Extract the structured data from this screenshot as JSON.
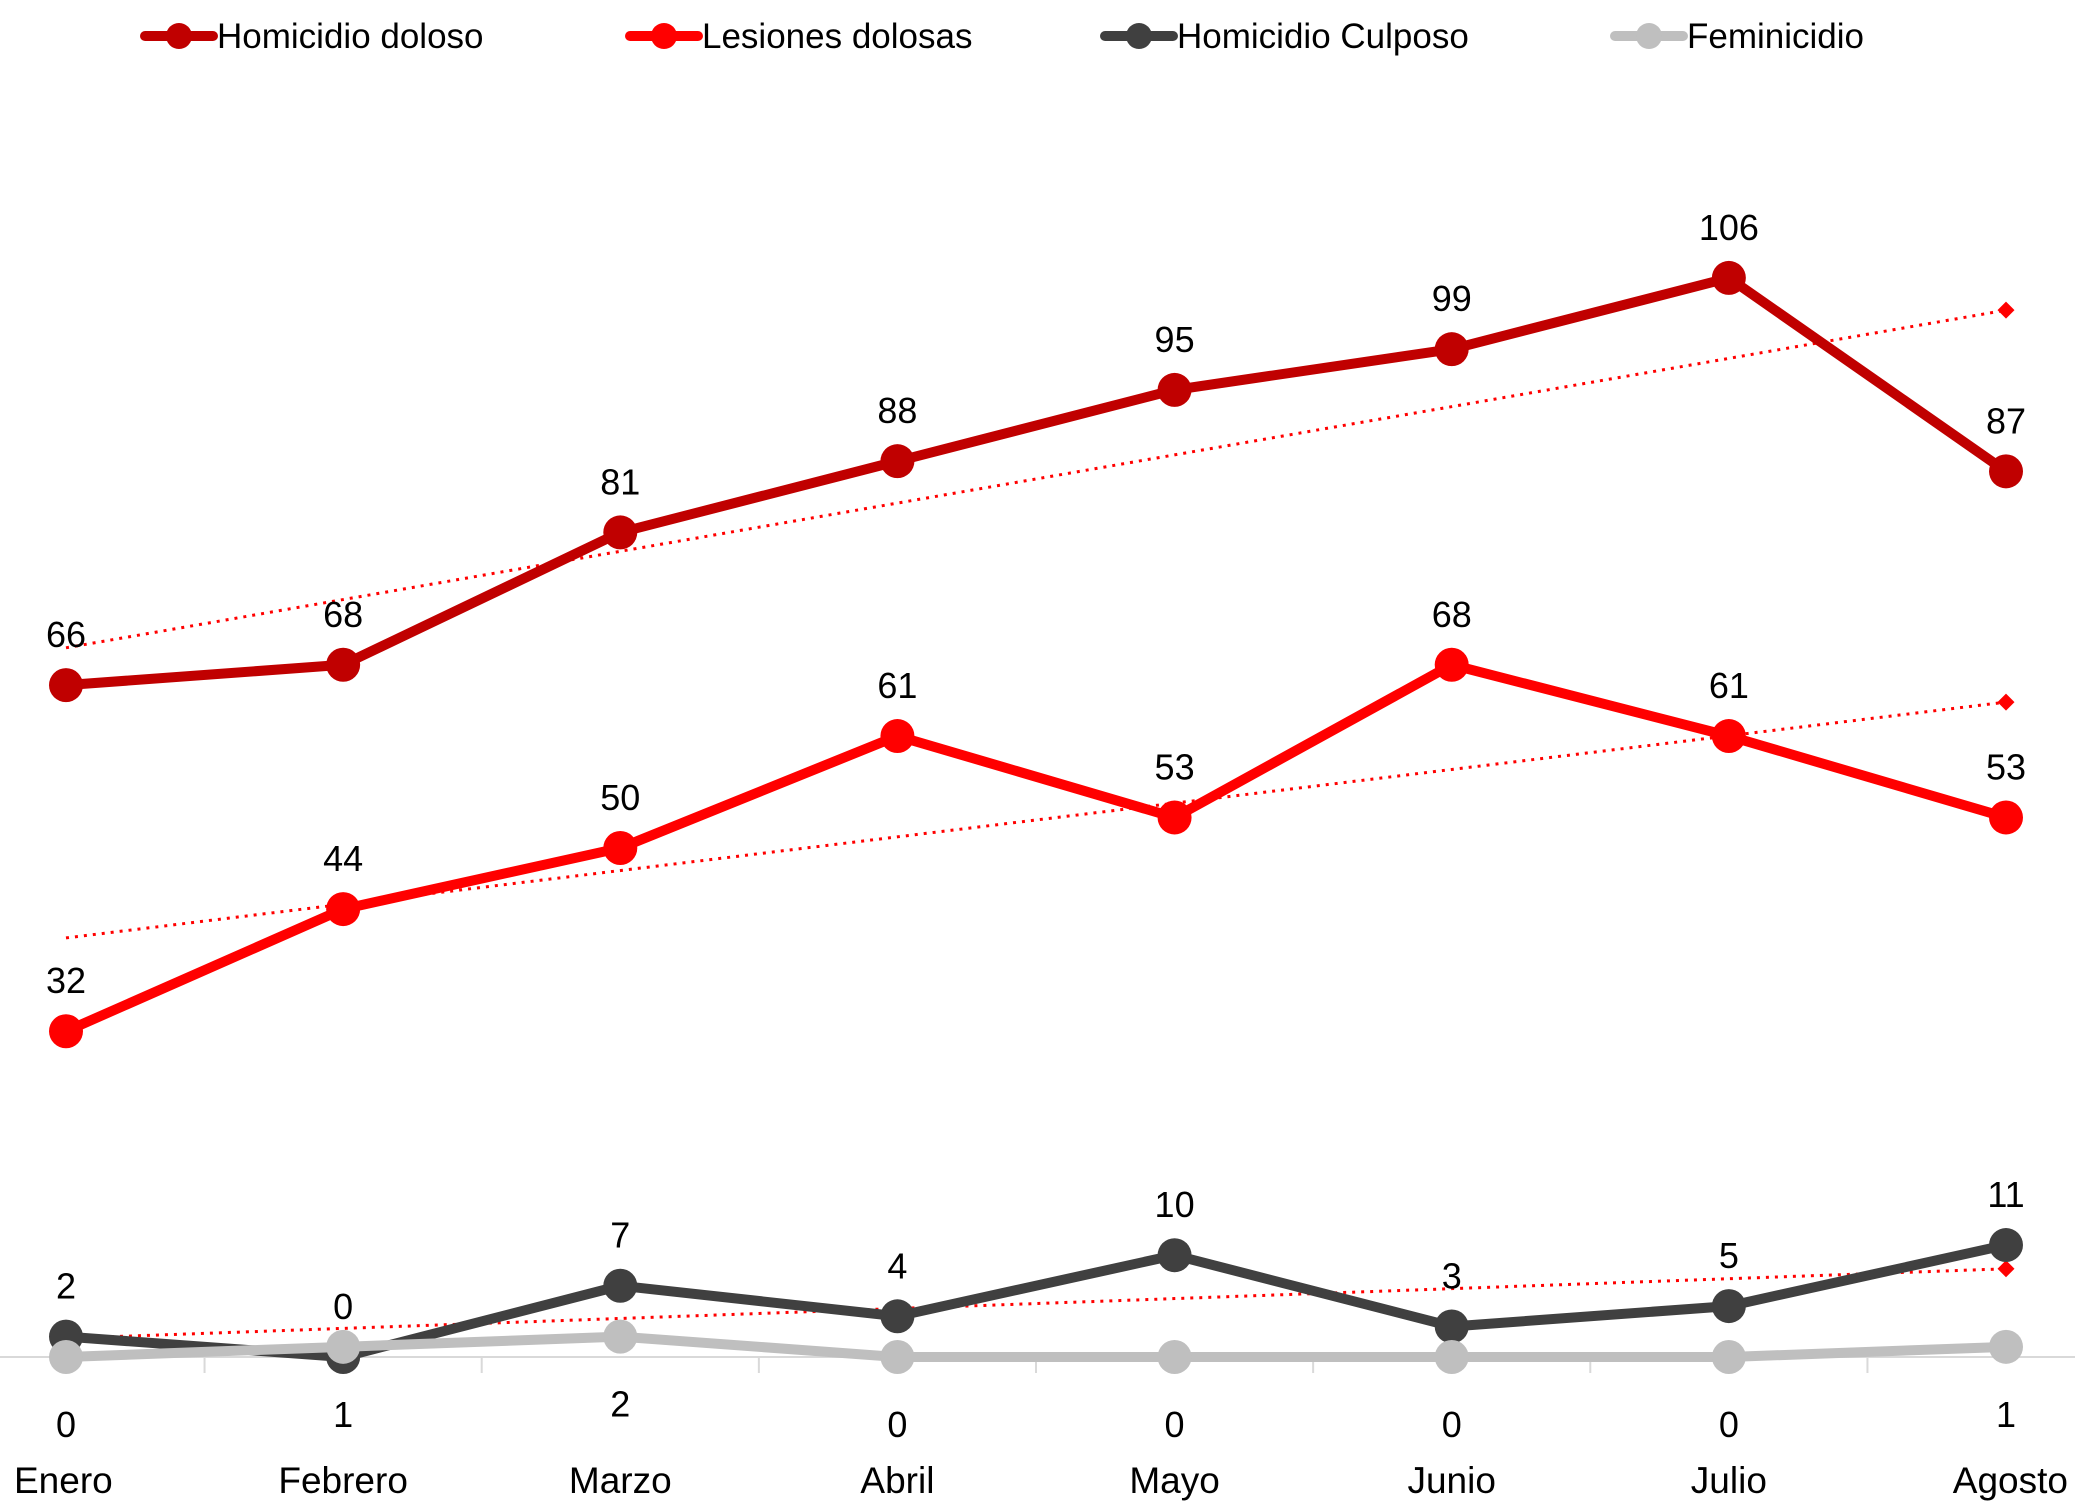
{
  "chart_data": {
    "type": "line",
    "categories": [
      "Enero",
      "Febrero",
      "Marzo",
      "Abril",
      "Mayo",
      "Junio",
      "Julio",
      "Agosto"
    ],
    "series": [
      {
        "name": "Homicidio doloso",
        "values": [
          66,
          68,
          81,
          88,
          95,
          99,
          106,
          87
        ],
        "color": "#C00000",
        "label_position": "above",
        "trendline": true
      },
      {
        "name": "Lesiones dolosas",
        "values": [
          32,
          44,
          50,
          61,
          53,
          68,
          61,
          53
        ],
        "color": "#FF0000",
        "label_position": "above",
        "trendline": true
      },
      {
        "name": "Homicidio Culposo",
        "values": [
          2,
          0,
          7,
          4,
          10,
          3,
          5,
          11
        ],
        "color": "#404040",
        "label_position": "above",
        "trendline": true
      },
      {
        "name": "Feminicidio",
        "values": [
          0,
          1,
          2,
          0,
          0,
          0,
          0,
          1
        ],
        "color": "#BFBFBF",
        "label_position": "below",
        "trendline": false
      }
    ],
    "trendline_color": "#FF0000",
    "ylim": [
      0,
      115
    ],
    "grid": false,
    "y_axis_visible": false,
    "legend_position": "top",
    "title": "",
    "xlabel": "",
    "ylabel": ""
  }
}
